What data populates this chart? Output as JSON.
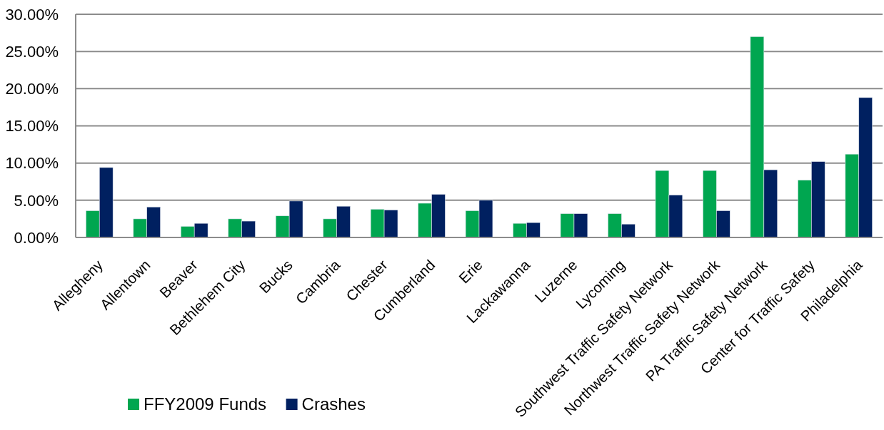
{
  "chart_data": {
    "type": "bar",
    "categories": [
      "Allegheny",
      "Allentown",
      "Beaver",
      "Bethlehem City",
      "Bucks",
      "Cambria",
      "Chester",
      "Cumberland",
      "Erie",
      "Lackawanna",
      "Luzerne",
      "Lycoming",
      "Southwest Traffic Safety Network",
      "Northwest Traffic Safety Network",
      "PA Traffic Safety Network",
      "Center for Traffic Safety",
      "Philadelphia"
    ],
    "series": [
      {
        "name": "FFY2009 Funds",
        "color": "#00a650",
        "values": [
          3.6,
          2.5,
          1.5,
          2.5,
          2.9,
          2.5,
          3.8,
          4.6,
          3.6,
          1.9,
          3.2,
          3.2,
          9.0,
          9.0,
          27.0,
          7.7,
          11.2
        ]
      },
      {
        "name": "Crashes",
        "color": "#002060",
        "values": [
          9.4,
          4.1,
          1.9,
          2.2,
          4.9,
          4.2,
          3.7,
          5.8,
          5.0,
          2.0,
          3.2,
          1.8,
          5.7,
          3.6,
          9.1,
          10.2,
          18.8
        ]
      }
    ],
    "ylim": [
      0,
      30
    ],
    "yticks": [
      {
        "value": 0,
        "label": "0.00%"
      },
      {
        "value": 5,
        "label": "5.00%"
      },
      {
        "value": 10,
        "label": "10.00%"
      },
      {
        "value": 15,
        "label": "15.00%"
      },
      {
        "value": 20,
        "label": "20.00%"
      },
      {
        "value": 25,
        "label": "25.00%"
      },
      {
        "value": 30,
        "label": "30.00%"
      }
    ],
    "grid": "y",
    "legend": "bottom"
  }
}
